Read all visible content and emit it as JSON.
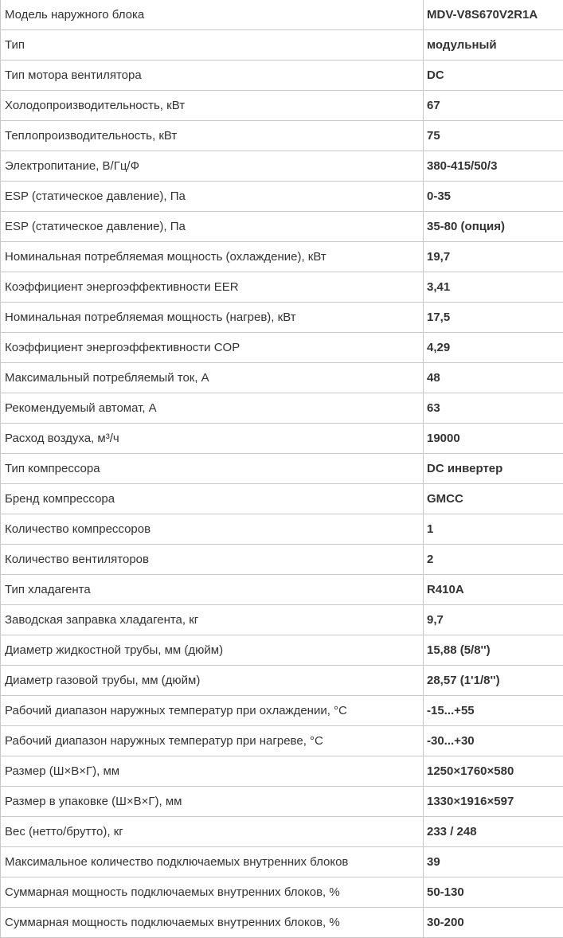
{
  "specs": [
    {
      "label": "Модель наружного блока",
      "value": "MDV-V8S670V2R1A"
    },
    {
      "label": "Тип",
      "value": "модульный"
    },
    {
      "label": "Тип мотора вентилятора",
      "value": "DC"
    },
    {
      "label": "Холодопроизводительность, кВт",
      "value": "67"
    },
    {
      "label": "Теплопроизводительность, кВт",
      "value": "75"
    },
    {
      "label": "Электропитание, В/Гц/Ф",
      "value": "380-415/50/3"
    },
    {
      "label": "ESP (статическое давление), Па",
      "value": "0-35"
    },
    {
      "label": "ESP (статическое давление), Па",
      "value": "35-80 (опция)"
    },
    {
      "label": "Номинальная потребляемая мощность (охлаждение), кВт",
      "value": "19,7"
    },
    {
      "label": "Коэффициент энергоэффективности EER",
      "value": "3,41"
    },
    {
      "label": "Номинальная потребляемая мощность (нагрев), кВт",
      "value": "17,5"
    },
    {
      "label": "Коэффициент энергоэффективности COP",
      "value": "4,29"
    },
    {
      "label": "Максимальный потребляемый ток, А",
      "value": "48"
    },
    {
      "label": "Рекомендуемый автомат, А",
      "value": "63"
    },
    {
      "label": "Расход воздуха, м³/ч",
      "value": "19000"
    },
    {
      "label": "Тип компрессора",
      "value": "DC инвертер"
    },
    {
      "label": "Бренд компрессора",
      "value": "GMCC"
    },
    {
      "label": "Количество компрессоров",
      "value": "1"
    },
    {
      "label": "Количество вентиляторов",
      "value": "2"
    },
    {
      "label": "Тип хладагента",
      "value": "R410A"
    },
    {
      "label": "Заводская заправка хладагента, кг",
      "value": "9,7"
    },
    {
      "label": "Диаметр жидкостной трубы, мм (дюйм)",
      "value": "15,88 (5/8'')"
    },
    {
      "label": "Диаметр газовой трубы, мм (дюйм)",
      "value": "28,57 (1'1/8'')"
    },
    {
      "label": "Рабочий диапазон наружных температур при охлаждении, °C",
      "value": "-15...+55"
    },
    {
      "label": "Рабочий диапазон наружных температур при нагреве, °C",
      "value": "-30...+30"
    },
    {
      "label": "Размер (Ш×В×Г), мм",
      "value": "1250×1760×580"
    },
    {
      "label": "Размер в упаковке (Ш×В×Г), мм",
      "value": "1330×1916×597"
    },
    {
      "label": "Вес (нетто/брутто), кг",
      "value": "233 / 248"
    },
    {
      "label": "Максимальное количество подключаемых внутренних блоков",
      "value": "39"
    },
    {
      "label": "Суммарная мощность подключаемых внутренних блоков, %",
      "value": "50-130"
    },
    {
      "label": "Суммарная мощность подключаемых внутренних блоков, %",
      "value": "30-200"
    }
  ]
}
